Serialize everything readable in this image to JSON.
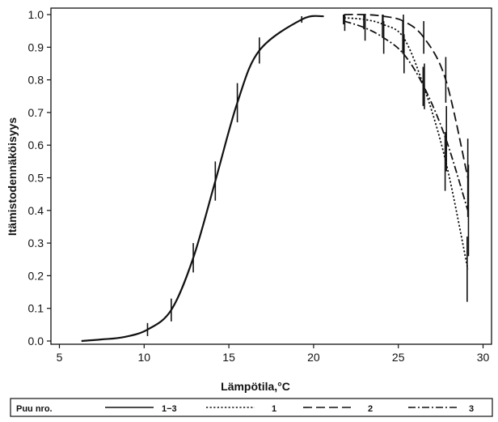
{
  "chart_data": {
    "type": "line",
    "xlabel": "Lämpötila,°C",
    "ylabel": "Itämistodennäköisyys",
    "xlim": [
      4.5,
      30.5
    ],
    "ylim": [
      0,
      1.0
    ],
    "xticks": [
      "5",
      "10",
      "15",
      "20",
      "25",
      "30"
    ],
    "yticks": [
      "0.0",
      "0.1",
      "0.2",
      "0.3",
      "0.4",
      "0.5",
      "0.6",
      "0.7",
      "0.8",
      "0.9",
      "1.0"
    ],
    "grid": false,
    "legend": {
      "placement": "bottom",
      "title": "Puu nro.",
      "entries": [
        "1−3",
        "1",
        "2",
        "3"
      ]
    },
    "series": [
      {
        "name": "1−3",
        "style": "solid",
        "x": [
          6.3,
          7.5,
          8.8,
          10.2,
          11.6,
          12.9,
          14.2,
          15.5,
          16.8,
          19.3,
          20.6
        ],
        "y": [
          0.0,
          0.005,
          0.012,
          0.035,
          0.095,
          0.255,
          0.49,
          0.73,
          0.89,
          0.985,
          0.995
        ],
        "err": [
          0,
          0,
          0,
          0.02,
          0.035,
          0.045,
          0.06,
          0.06,
          0.04,
          0.01,
          0
        ]
      },
      {
        "name": "1",
        "style": "dotted",
        "x": [
          21.8,
          23.0,
          24.1,
          25.3,
          26.5,
          27.8,
          29.1
        ],
        "y": [
          0.99,
          0.985,
          0.97,
          0.93,
          0.78,
          0.55,
          0.22
        ],
        "err": [
          0.02,
          0.03,
          0.04,
          0.05,
          0.06,
          0.09,
          0.1
        ]
      },
      {
        "name": "2",
        "style": "dashed",
        "x": [
          21.8,
          23.0,
          24.1,
          25.3,
          26.5,
          27.8,
          29.1
        ],
        "y": [
          1.0,
          1.0,
          0.995,
          0.98,
          0.93,
          0.8,
          0.5
        ],
        "err": [
          0.01,
          0.01,
          0.02,
          0.04,
          0.05,
          0.07,
          0.12
        ]
      },
      {
        "name": "3",
        "style": "dashdot",
        "x": [
          21.8,
          23.0,
          24.1,
          25.3,
          26.5,
          27.8,
          29.1
        ],
        "y": [
          0.98,
          0.96,
          0.93,
          0.88,
          0.78,
          0.62,
          0.4
        ],
        "err": [
          0.03,
          0.04,
          0.05,
          0.06,
          0.07,
          0.1,
          0.14
        ]
      }
    ]
  }
}
